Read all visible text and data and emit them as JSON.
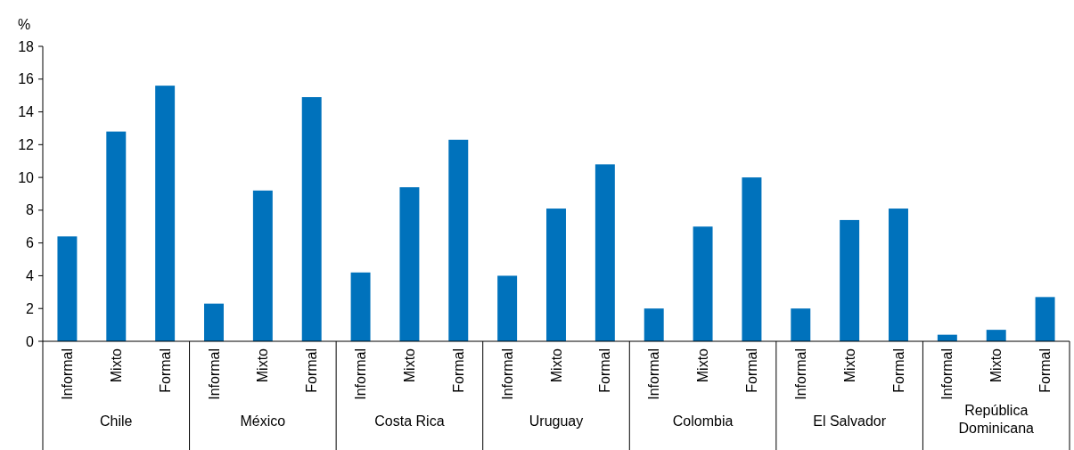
{
  "chart_data": {
    "type": "bar",
    "ylabel": "%",
    "categories": [
      "Informal",
      "Mixto",
      "Formal",
      "Informal",
      "Mixto",
      "Formal",
      "Informal",
      "Mixto",
      "Formal",
      "Informal",
      "Mixto",
      "Formal",
      "Informal",
      "Mixto",
      "Formal",
      "Informal",
      "Mixto",
      "Formal",
      "Informal",
      "Mixto",
      "Formal"
    ],
    "values": [
      6.4,
      12.8,
      15.6,
      2.3,
      9.2,
      14.9,
      4.2,
      9.4,
      12.3,
      4.0,
      8.1,
      10.8,
      2.0,
      7.0,
      10.0,
      2.0,
      7.4,
      8.1,
      0.4,
      0.7,
      2.7
    ],
    "color": "#0072bc",
    "ylim": [
      0,
      18
    ],
    "yticks": [
      0,
      2,
      4,
      6,
      8,
      10,
      12,
      14,
      16,
      18
    ],
    "annotations": [
      "Chile",
      "México",
      "Costa Rica",
      "Uruguay",
      "Colombia",
      "El Salvador",
      "República Dominicana"
    ]
  }
}
